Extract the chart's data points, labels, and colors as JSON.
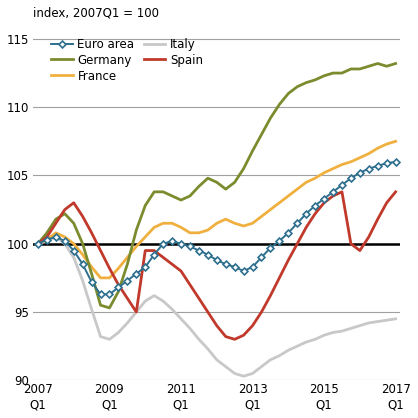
{
  "title": "index, 2007Q1 = 100",
  "ylim": [
    90,
    116
  ],
  "yticks": [
    90,
    95,
    100,
    105,
    110,
    115
  ],
  "xlabel_years": [
    "2007\nQ1",
    "2009\nQ1",
    "2011\nQ1",
    "2013\nQ1",
    "2015\nQ1",
    "2017\nQ1"
  ],
  "xtick_positions": [
    0,
    8,
    16,
    24,
    32,
    40
  ],
  "num_quarters": 41,
  "series": {
    "Euro area": {
      "color": "#2e6f8e",
      "marker": "D",
      "markersize": 3.5,
      "linewidth": 1.4,
      "data": [
        100.0,
        100.3,
        100.5,
        100.2,
        99.5,
        98.5,
        97.2,
        96.3,
        96.3,
        96.8,
        97.3,
        97.8,
        98.3,
        99.2,
        100.0,
        100.2,
        100.0,
        99.8,
        99.5,
        99.2,
        98.8,
        98.5,
        98.3,
        98.0,
        98.3,
        99.0,
        99.7,
        100.2,
        100.8,
        101.5,
        102.2,
        102.8,
        103.3,
        103.8,
        104.3,
        104.8,
        105.2,
        105.5,
        105.7,
        105.9,
        106.0
      ]
    },
    "Germany": {
      "color": "#7a8c2e",
      "marker": null,
      "linewidth": 2.0,
      "data": [
        100.0,
        100.8,
        101.8,
        102.2,
        101.5,
        100.0,
        97.8,
        95.5,
        95.3,
        96.5,
        98.5,
        101.0,
        102.8,
        103.8,
        103.8,
        103.5,
        103.2,
        103.5,
        104.2,
        104.8,
        104.5,
        104.0,
        104.5,
        105.5,
        106.8,
        108.0,
        109.2,
        110.2,
        111.0,
        111.5,
        111.8,
        112.0,
        112.3,
        112.5,
        112.5,
        112.8,
        112.8,
        113.0,
        113.2,
        113.0,
        113.2
      ]
    },
    "France": {
      "color": "#f0b040",
      "marker": null,
      "linewidth": 2.0,
      "data": [
        100.0,
        100.3,
        100.8,
        100.5,
        100.0,
        99.2,
        98.3,
        97.5,
        97.5,
        98.2,
        99.0,
        99.8,
        100.5,
        101.2,
        101.5,
        101.5,
        101.2,
        100.8,
        100.8,
        101.0,
        101.5,
        101.8,
        101.5,
        101.3,
        101.5,
        102.0,
        102.5,
        103.0,
        103.5,
        104.0,
        104.5,
        104.8,
        105.2,
        105.5,
        105.8,
        106.0,
        106.3,
        106.6,
        107.0,
        107.3,
        107.5
      ]
    },
    "Italy": {
      "color": "#c8c8c8",
      "marker": null,
      "linewidth": 2.0,
      "data": [
        100.0,
        100.2,
        100.5,
        100.0,
        99.0,
        97.3,
        95.2,
        93.2,
        93.0,
        93.5,
        94.2,
        95.0,
        95.8,
        96.2,
        95.8,
        95.2,
        94.5,
        93.8,
        93.0,
        92.3,
        91.5,
        91.0,
        90.5,
        90.3,
        90.5,
        91.0,
        91.5,
        91.8,
        92.2,
        92.5,
        92.8,
        93.0,
        93.3,
        93.5,
        93.6,
        93.8,
        94.0,
        94.2,
        94.3,
        94.4,
        94.5
      ]
    },
    "Spain": {
      "color": "#c0392b",
      "marker": null,
      "linewidth": 2.0,
      "data": [
        100.0,
        100.5,
        101.5,
        102.5,
        103.0,
        102.0,
        100.8,
        99.5,
        98.2,
        97.0,
        96.0,
        95.0,
        99.5,
        99.5,
        99.0,
        98.5,
        98.0,
        97.0,
        96.0,
        95.0,
        94.0,
        93.2,
        93.0,
        93.3,
        94.0,
        95.0,
        96.2,
        97.5,
        98.8,
        100.0,
        101.2,
        102.2,
        103.0,
        103.5,
        103.8,
        100.0,
        99.5,
        100.5,
        101.8,
        103.0,
        103.8
      ]
    }
  },
  "hline_y": 100,
  "hline_color": "#000000",
  "hline_linewidth": 1.8,
  "background_color": "#ffffff",
  "grid_color": "#a0a0a0",
  "legend_order": [
    "Euro area",
    "Germany",
    "France",
    "Italy",
    "Spain"
  ]
}
